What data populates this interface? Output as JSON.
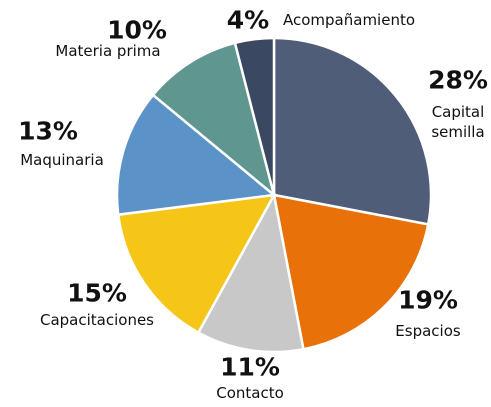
{
  "chart_data": {
    "type": "pie",
    "categories": [
      "Capital semilla",
      "Espacios",
      "Contacto",
      "Capacitaciones",
      "Maquinaria",
      "Materia prima",
      "Acompañamiento"
    ],
    "values": [
      28,
      19,
      11,
      15,
      13,
      10,
      4
    ],
    "value_labels": [
      "28%",
      "19%",
      "11%",
      "15%",
      "13%",
      "10%",
      "4%"
    ],
    "colors": [
      "#4f5d78",
      "#e8710a",
      "#c8c8c8",
      "#f5c518",
      "#5b93c8",
      "#5f9690",
      "#3a4862"
    ]
  }
}
